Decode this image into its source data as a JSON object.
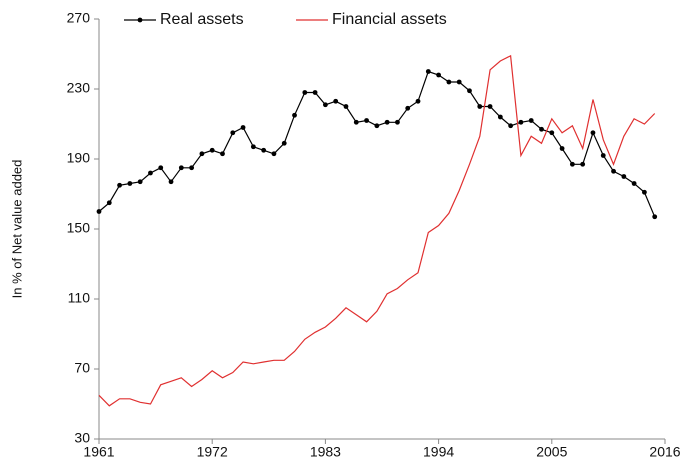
{
  "chart_data": {
    "type": "line",
    "y_label": "In % of Net value added",
    "x": [
      1961,
      1962,
      1963,
      1964,
      1965,
      1966,
      1967,
      1968,
      1969,
      1970,
      1971,
      1972,
      1973,
      1974,
      1975,
      1976,
      1977,
      1978,
      1979,
      1980,
      1981,
      1982,
      1983,
      1984,
      1985,
      1986,
      1987,
      1988,
      1989,
      1990,
      1991,
      1992,
      1993,
      1994,
      1995,
      1996,
      1997,
      1998,
      1999,
      2000,
      2001,
      2002,
      2003,
      2004,
      2005,
      2006,
      2007,
      2008,
      2009,
      2010,
      2011,
      2012,
      2013,
      2014,
      2015
    ],
    "series": [
      {
        "name": "Real assets",
        "color": "#000000",
        "markers": true,
        "values": [
          160,
          165,
          175,
          176,
          177,
          182,
          185,
          177,
          185,
          185,
          193,
          195,
          193,
          205,
          208,
          197,
          195,
          193,
          199,
          215,
          228,
          228,
          221,
          223,
          220,
          211,
          212,
          209,
          211,
          211,
          219,
          223,
          240,
          238,
          234,
          234,
          229,
          220,
          220,
          214,
          209,
          211,
          212,
          207,
          205,
          196,
          187,
          187,
          205,
          192,
          183,
          180,
          176,
          171,
          157
        ]
      },
      {
        "name": "Financial assets",
        "color": "#e03030",
        "markers": false,
        "values": [
          55,
          49,
          53,
          53,
          51,
          50,
          61,
          63,
          65,
          60,
          64,
          69,
          65,
          68,
          74,
          73,
          74,
          75,
          75,
          80,
          87,
          91,
          94,
          99,
          105,
          101,
          97,
          103,
          113,
          116,
          121,
          125,
          148,
          152,
          159,
          172,
          187,
          203,
          241,
          246,
          249,
          192,
          203,
          199,
          213,
          205,
          209,
          196,
          224,
          201,
          187,
          203,
          213,
          210,
          216
        ]
      }
    ],
    "xlim": [
      1961,
      2016
    ],
    "xticks": [
      1961,
      1972,
      1983,
      1994,
      2005,
      2016
    ],
    "ylim": [
      30,
      270
    ],
    "yticks": [
      30,
      70,
      110,
      150,
      190,
      230,
      270
    ],
    "grid": false,
    "legend": "top-left"
  }
}
